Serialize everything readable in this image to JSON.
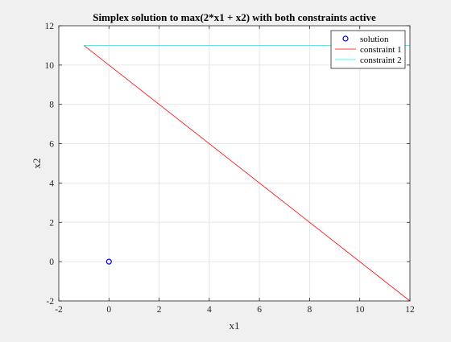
{
  "chart_data": {
    "type": "line",
    "title": "Simplex solution to max(2*x1 + x2) with both constraints active",
    "xlabel": "x1",
    "ylabel": "x2",
    "xlim": [
      -2,
      12
    ],
    "ylim": [
      -2,
      12
    ],
    "xticks": [
      -2,
      0,
      2,
      4,
      6,
      8,
      10,
      12
    ],
    "yticks": [
      -2,
      0,
      2,
      4,
      6,
      8,
      10,
      12
    ],
    "grid": true,
    "legend_position": "top-right",
    "series": [
      {
        "name": "solution",
        "kind": "marker",
        "marker": "circle",
        "color": "#0000ff",
        "points": [
          [
            0,
            0
          ]
        ]
      },
      {
        "name": "constraint 1",
        "kind": "line",
        "color": "#ff0000",
        "points": [
          [
            -1,
            11
          ],
          [
            12,
            -2
          ]
        ]
      },
      {
        "name": "constraint 2",
        "kind": "line",
        "color": "#00ffff",
        "points": [
          [
            -1,
            11
          ],
          [
            12,
            11
          ]
        ]
      }
    ]
  }
}
